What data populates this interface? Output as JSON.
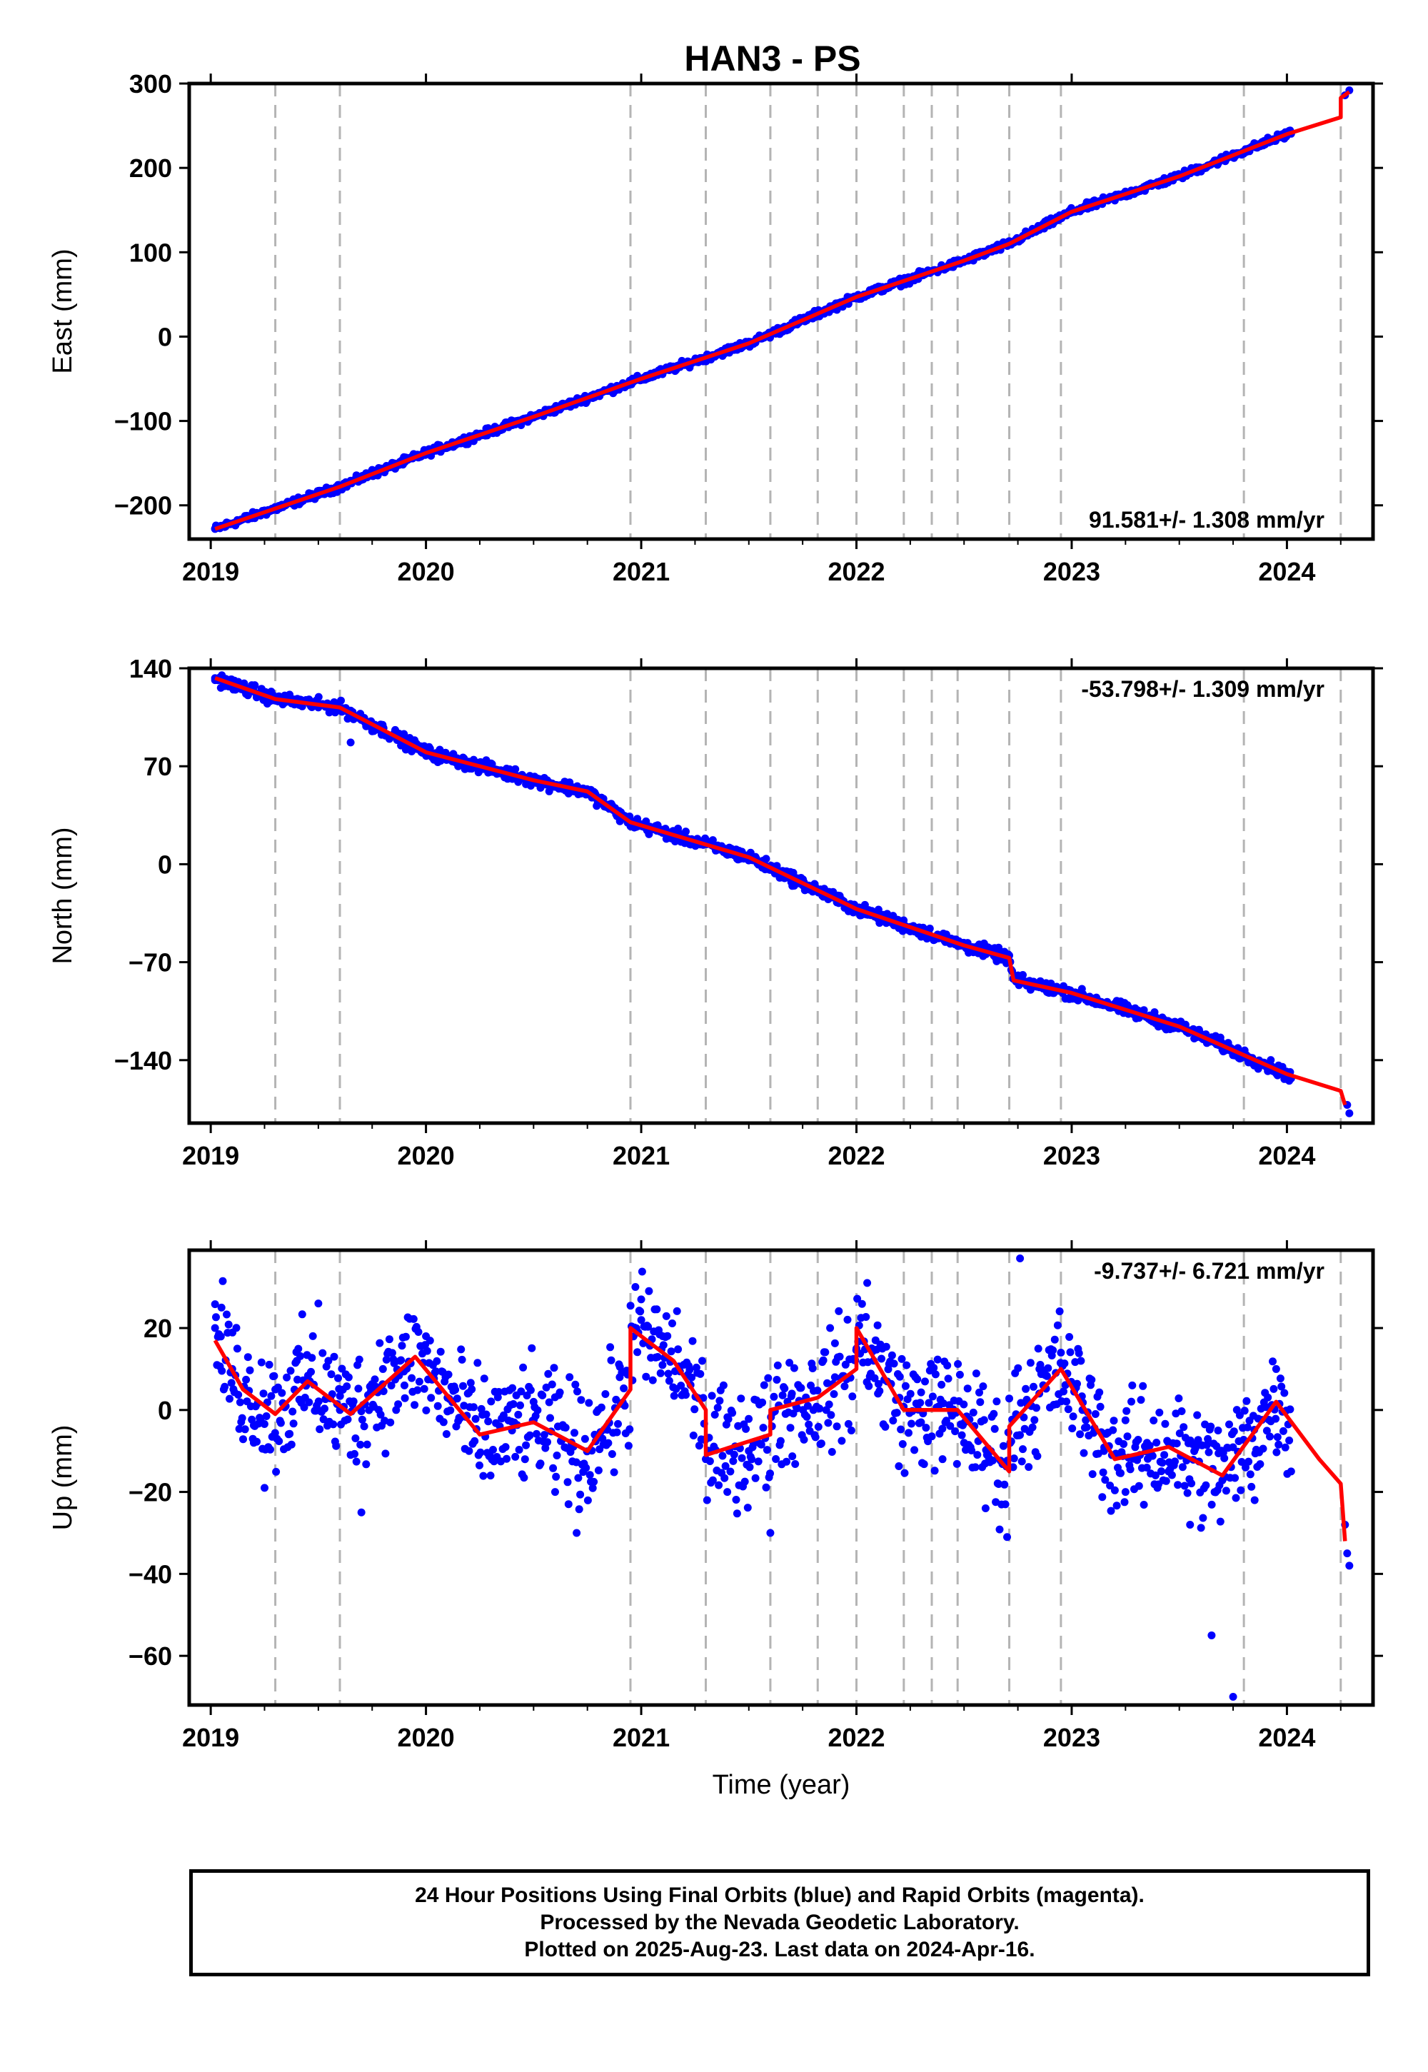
{
  "footer": {
    "line1": "24 Hour Positions Using Final Orbits (blue) and Rapid Orbits (magenta).",
    "line2": "Processed by the Nevada Geodetic Laboratory.",
    "line3": "Plotted on 2025-Aug-23. Last data on 2024-Apr-16."
  },
  "colors": {
    "data_points": "#0000ff",
    "model_fit": "#ff0000",
    "event_lines": "#b4b4b4",
    "frame": "#000000"
  },
  "chart_data": [
    {
      "type": "scatter",
      "title": "HAN3 - PS",
      "xlabel": "",
      "ylabel": "East (mm)",
      "xlim": [
        2018.9,
        2024.4
      ],
      "ylim": [
        -240,
        300
      ],
      "xticks": [
        "2019",
        "2020",
        "2021",
        "2022",
        "2023",
        "2024"
      ],
      "yticks": [
        "300",
        "200",
        "100",
        "0",
        "−100",
        "−200"
      ],
      "ytick_values": [
        300,
        200,
        100,
        0,
        -100,
        -200
      ],
      "rate_label": "91.581+/- 1.308 mm/yr",
      "rate_position": "bottom-right",
      "event_lines": [
        2019.3,
        2019.6,
        2020.95,
        2021.3,
        2021.6,
        2021.82,
        2022.0,
        2022.22,
        2022.35,
        2022.47,
        2022.71,
        2022.95,
        2023.8,
        2024.25
      ],
      "fit": {
        "x": [
          2019.02,
          2019.6,
          2020.0,
          2020.5,
          2021.0,
          2021.5,
          2022.0,
          2022.5,
          2022.71,
          2023.0,
          2023.5,
          2024.0,
          2024.25,
          2024.25,
          2024.29
        ],
        "y": [
          -228,
          -178,
          -138,
          -95,
          -50,
          -8,
          47,
          90,
          110,
          148,
          190,
          240,
          260,
          283,
          290
        ]
      },
      "points": {
        "x": [
          2019.02,
          2019.25,
          2019.5,
          2019.75,
          2020.0,
          2020.25,
          2020.5,
          2020.75,
          2021.0,
          2021.25,
          2021.5,
          2021.75,
          2022.0,
          2022.25,
          2022.5,
          2022.75,
          2023.0,
          2023.25,
          2023.5,
          2023.75,
          2024.0,
          2024.27,
          2024.29
        ],
        "y": [
          -228,
          -206,
          -188,
          -158,
          -138,
          -117,
          -96,
          -73,
          -50,
          -28,
          -6,
          22,
          47,
          70,
          90,
          115,
          148,
          170,
          190,
          215,
          240,
          286,
          292
        ]
      }
    },
    {
      "type": "scatter",
      "title": "",
      "xlabel": "",
      "ylabel": "North (mm)",
      "xlim": [
        2018.9,
        2024.4
      ],
      "ylim": [
        -185,
        140
      ],
      "xticks": [
        "2019",
        "2020",
        "2021",
        "2022",
        "2023",
        "2024"
      ],
      "yticks": [
        "140",
        "70",
        "0",
        "−70",
        "−140"
      ],
      "ytick_values": [
        140,
        70,
        0,
        -70,
        -140
      ],
      "rate_label": "-53.798+/- 1.309 mm/yr",
      "rate_position": "top-right",
      "event_lines": [
        2019.3,
        2019.6,
        2020.95,
        2021.3,
        2021.6,
        2021.82,
        2022.0,
        2022.22,
        2022.35,
        2022.47,
        2022.71,
        2022.95,
        2023.8,
        2024.25
      ],
      "fit": {
        "x": [
          2019.02,
          2019.3,
          2019.6,
          2020.0,
          2020.5,
          2020.75,
          2020.95,
          2021.5,
          2022.0,
          2022.5,
          2022.71,
          2022.73,
          2023.0,
          2023.5,
          2024.0,
          2024.25,
          2024.27
        ],
        "y": [
          133,
          118,
          112,
          80,
          60,
          52,
          30,
          5,
          -32,
          -58,
          -67,
          -83,
          -92,
          -116,
          -150,
          -162,
          -172
        ]
      },
      "points": {
        "x": [
          2019.02,
          2019.25,
          2019.5,
          2019.65,
          2019.75,
          2020.0,
          2020.25,
          2020.5,
          2020.75,
          2021.0,
          2021.25,
          2021.5,
          2021.75,
          2022.0,
          2022.25,
          2022.5,
          2022.7,
          2022.75,
          2023.0,
          2023.25,
          2023.5,
          2023.75,
          2024.0,
          2024.28,
          2024.29
        ],
        "y": [
          133,
          122,
          112,
          87,
          95,
          80,
          69,
          60,
          50,
          28,
          14,
          3,
          -15,
          -32,
          -48,
          -58,
          -65,
          -82,
          -92,
          -105,
          -116,
          -133,
          -150,
          -172,
          -178
        ]
      }
    },
    {
      "type": "scatter",
      "title": "",
      "xlabel": "Time (year)",
      "ylabel": "Up (mm)",
      "xlim": [
        2018.9,
        2024.4
      ],
      "ylim": [
        -72,
        39
      ],
      "xticks": [
        "2019",
        "2020",
        "2021",
        "2022",
        "2023",
        "2024"
      ],
      "yticks": [
        "20",
        "0",
        "−20",
        "−40",
        "−60"
      ],
      "ytick_values": [
        20,
        0,
        -20,
        -40,
        -60
      ],
      "rate_label": "-9.737+/- 6.721 mm/yr",
      "rate_position": "top-right",
      "event_lines": [
        2019.3,
        2019.6,
        2020.95,
        2021.3,
        2021.6,
        2021.82,
        2022.0,
        2022.22,
        2022.35,
        2022.47,
        2022.71,
        2022.95,
        2023.8,
        2024.25
      ],
      "fit": {
        "x": [
          2019.02,
          2019.15,
          2019.3,
          2019.45,
          2019.65,
          2019.95,
          2020.25,
          2020.5,
          2020.75,
          2020.95,
          2020.95,
          2021.15,
          2021.3,
          2021.3,
          2021.6,
          2021.6,
          2021.82,
          2022.0,
          2022.0,
          2022.22,
          2022.47,
          2022.71,
          2022.71,
          2022.95,
          2023.2,
          2023.45,
          2023.7,
          2023.95,
          2024.15,
          2024.25,
          2024.27
        ],
        "y": [
          17,
          5,
          -1,
          7,
          -1,
          13,
          -6,
          -3,
          -10,
          5,
          20,
          12,
          0,
          -11,
          -6,
          0,
          3,
          10,
          20,
          0,
          0,
          -15,
          -4,
          10,
          -12,
          -9,
          -16,
          2,
          -12,
          -18,
          -32
        ]
      },
      "points": {
        "x": [
          2019.02,
          2019.05,
          2019.1,
          2019.2,
          2019.25,
          2019.3,
          2019.4,
          2019.5,
          2019.6,
          2019.7,
          2019.8,
          2019.9,
          2020.0,
          2020.1,
          2020.2,
          2020.3,
          2020.4,
          2020.5,
          2020.6,
          2020.7,
          2020.8,
          2020.9,
          2021.0,
          2021.1,
          2021.2,
          2021.3,
          2021.4,
          2021.5,
          2021.6,
          2021.7,
          2021.8,
          2021.9,
          2022.0,
          2022.05,
          2022.1,
          2022.2,
          2022.3,
          2022.4,
          2022.5,
          2022.6,
          2022.7,
          2022.76,
          2022.85,
          2022.95,
          2023.05,
          2023.15,
          2023.25,
          2023.35,
          2023.45,
          2023.55,
          2023.65,
          2023.68,
          2023.75,
          2023.85,
          2023.95,
          2024.05,
          2024.27,
          2024.28,
          2024.29
        ],
        "y": [
          20,
          25,
          10,
          -8,
          -19,
          5,
          12,
          26,
          0,
          -25,
          10,
          6,
          18,
          3,
          -10,
          -16,
          -5,
          2,
          -20,
          -30,
          0,
          8,
          27,
          18,
          4,
          -12,
          -20,
          -10,
          -30,
          4,
          0,
          8,
          15,
          31,
          4,
          3,
          -3,
          -12,
          -8,
          -24,
          -31,
          37,
          10,
          14,
          0,
          -10,
          -20,
          -8,
          -15,
          -28,
          -55,
          -5,
          -70,
          -22,
          10,
          5,
          -28,
          -35,
          -38
        ]
      }
    }
  ]
}
